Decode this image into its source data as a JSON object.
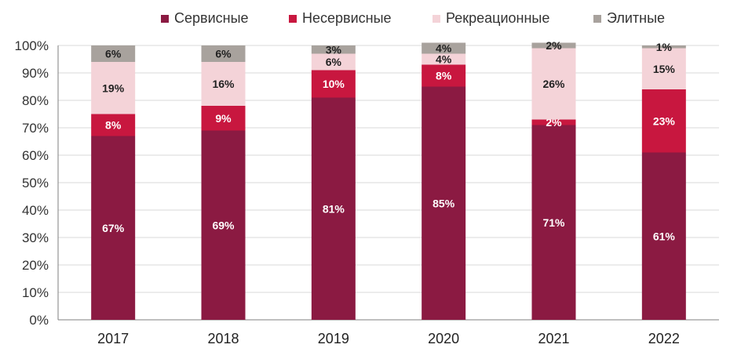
{
  "chart_data": {
    "type": "bar",
    "stacked": true,
    "categories": [
      "2017",
      "2018",
      "2019",
      "2020",
      "2021",
      "2022"
    ],
    "series": [
      {
        "name": "Сервисные",
        "values": [
          67,
          69,
          81,
          85,
          71,
          61
        ],
        "color": "#8b1a42",
        "label_color": "#ffffff"
      },
      {
        "name": "Несервисные",
        "values": [
          8,
          9,
          10,
          8,
          2,
          23
        ],
        "color": "#c8173f",
        "label_color": "#ffffff"
      },
      {
        "name": "Рекреационные",
        "values": [
          19,
          16,
          6,
          4,
          26,
          15
        ],
        "color": "#f4d3d8",
        "label_color": "#222222"
      },
      {
        "name": "Элитные",
        "values": [
          6,
          6,
          3,
          4,
          2,
          1
        ],
        "color": "#a8a29d",
        "label_color": "#222222"
      }
    ],
    "ylim": [
      0,
      100
    ],
    "yticks": [
      "0%",
      "10%",
      "20%",
      "30%",
      "40%",
      "50%",
      "60%",
      "70%",
      "80%",
      "90%",
      "100%"
    ],
    "grid": true,
    "legend_position": "top",
    "title": "",
    "xlabel": "",
    "ylabel": ""
  }
}
